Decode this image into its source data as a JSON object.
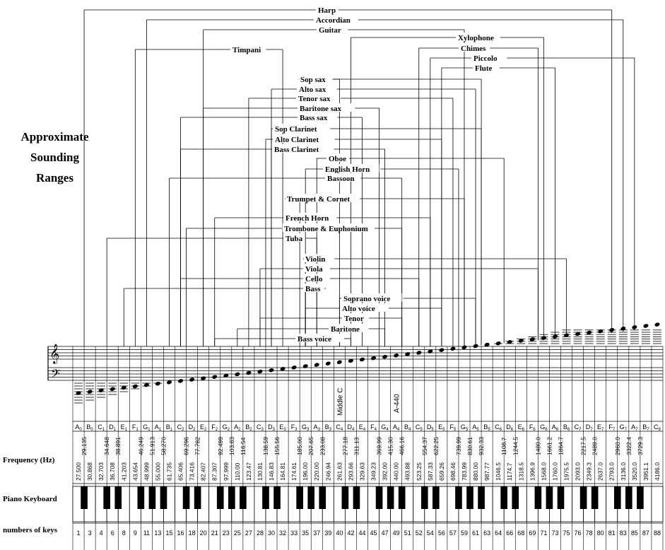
{
  "side_title": [
    "Approximate",
    "Sounding",
    "Ranges"
  ],
  "row_labels": {
    "frequency": "Frequency (Hz)",
    "piano": "Piano Keyboard",
    "numbers": "numbers of keys"
  },
  "markers": {
    "middle_c": "Middle C",
    "a440": "A-440"
  },
  "instruments": [
    {
      "name": "Harp",
      "low": 2,
      "high": 81
    },
    {
      "name": "Accordian",
      "low": 11,
      "high": 83
    },
    {
      "name": "Guitar",
      "low": 20,
      "high": 59
    },
    {
      "name": "Xylophone",
      "low": 42,
      "high": 71
    },
    {
      "name": "Chimes",
      "low": 52,
      "high": 70
    },
    {
      "name": "Piccolo",
      "low": 54,
      "high": 85
    },
    {
      "name": "Flute",
      "low": 56,
      "high": 73
    },
    {
      "name": "Timpani",
      "low": 9,
      "high": 32
    },
    {
      "name": "Sop sax",
      "low": 40,
      "high": 62
    },
    {
      "name": "Alto sax",
      "low": 30,
      "high": 61
    },
    {
      "name": "Tenor sax",
      "low": 27,
      "high": 57
    },
    {
      "name": "Baritone sax",
      "low": 20,
      "high": 46
    },
    {
      "name": "Bass sax",
      "low": 16,
      "high": 44
    },
    {
      "name": "Sop Clarinet",
      "low": 30,
      "high": 62
    },
    {
      "name": "Alto Clarinet",
      "low": 29,
      "high": 56
    },
    {
      "name": "Bass Clarinet",
      "low": 16,
      "high": 47
    },
    {
      "name": "Oboe",
      "low": 37,
      "high": 65
    },
    {
      "name": "English Horn",
      "low": 35,
      "high": 58
    },
    {
      "name": "Bassoon",
      "low": 15,
      "high": 50
    },
    {
      "name": "Trumpet & Cornet",
      "low": 34,
      "high": 59
    },
    {
      "name": "French Horn",
      "low": 21,
      "high": 54
    },
    {
      "name": "Trombone & Euphonium",
      "low": 17,
      "high": 50
    },
    {
      "name": "Tuba",
      "low": 5,
      "high": 37
    },
    {
      "name": "Violin",
      "low": 35,
      "high": 75
    },
    {
      "name": "Viola",
      "low": 28,
      "high": 70
    },
    {
      "name": "Cello",
      "low": 16,
      "high": 52
    },
    {
      "name": "Bass",
      "low": 8,
      "high": 35
    },
    {
      "name": "Soprano voice",
      "low": 40,
      "high": 61
    },
    {
      "name": "Alto voice",
      "low": 35,
      "high": 56
    },
    {
      "name": "Tenor",
      "low": 28,
      "high": 50
    },
    {
      "name": "Baritone",
      "low": 25,
      "high": 47
    },
    {
      "name": "Bass voice",
      "low": 21,
      "high": 42
    }
  ],
  "white_notes": [
    "A0",
    "B0",
    "C1",
    "D1",
    "E1",
    "F1",
    "G1",
    "A1",
    "B1",
    "C2",
    "D2",
    "E2",
    "F2",
    "G2",
    "A2",
    "B2",
    "C3",
    "D3",
    "E3",
    "F3",
    "G3",
    "A3",
    "B3",
    "C4",
    "D4",
    "E4",
    "F4",
    "G4",
    "A4",
    "B4",
    "C5",
    "D5",
    "E5",
    "F5",
    "G5",
    "A5",
    "B5",
    "C6",
    "D6",
    "E6",
    "F6",
    "G6",
    "A6",
    "B6",
    "C7",
    "D7",
    "E7",
    "F7",
    "G7",
    "A7",
    "B7",
    "C8"
  ],
  "white_freqs": [
    "27.500",
    "30.868",
    "32.703",
    "36.708",
    "41.203",
    "43.654",
    "48.999",
    "55.000",
    "61.735",
    "65.406",
    "73.416",
    "82.407",
    "87.307",
    "97.999",
    "110.00",
    "123.47",
    "130.81",
    "146.83",
    "164.81",
    "174.61",
    "196.00",
    "220.00",
    "246.94",
    "261.63",
    "293.66",
    "329.63",
    "349.23",
    "392.00",
    "440.00",
    "493.88",
    "523.25",
    "587.33",
    "659.26",
    "698.46",
    "783.99",
    "880.00",
    "987.77",
    "1046.5",
    "1174.7",
    "1318.5",
    "1396.9",
    "1568.0",
    "1760.0",
    "1975.5",
    "2093.0",
    "2349.3",
    "2637.0",
    "2793.0",
    "3136.0",
    "3520.0",
    "3951.1",
    "4186.0"
  ],
  "black_freqs": [
    "29.135",
    "34.648",
    "38.891",
    "46.249",
    "51.913",
    "58.270",
    "69.296",
    "77.782",
    "92.499",
    "103.83",
    "116.54",
    "138.59",
    "155.56",
    "185.00",
    "207.65",
    "233.08",
    "277.18",
    "311.13",
    "369.99",
    "415.30",
    "466.16",
    "554.37",
    "622.25",
    "739.99",
    "830.61",
    "932.33",
    "1108.7",
    "1244.5",
    "1480.0",
    "1661.2",
    "1864.7",
    "2217.5",
    "2489.0",
    "2960.0",
    "3322.4",
    "3729.3"
  ],
  "key_numbers": [
    "1",
    "3",
    "4",
    "6",
    "8",
    "9",
    "11",
    "13",
    "15",
    "16",
    "18",
    "20",
    "21",
    "23",
    "25",
    "27",
    "28",
    "30",
    "32",
    "33",
    "35",
    "37",
    "39",
    "40",
    "42",
    "44",
    "45",
    "47",
    "49",
    "51",
    "52",
    "54",
    "56",
    "57",
    "59",
    "61",
    "63",
    "64",
    "66",
    "68",
    "69",
    "71",
    "73",
    "75",
    "76",
    "78",
    "80",
    "81",
    "83",
    "85",
    "87",
    "88"
  ]
}
